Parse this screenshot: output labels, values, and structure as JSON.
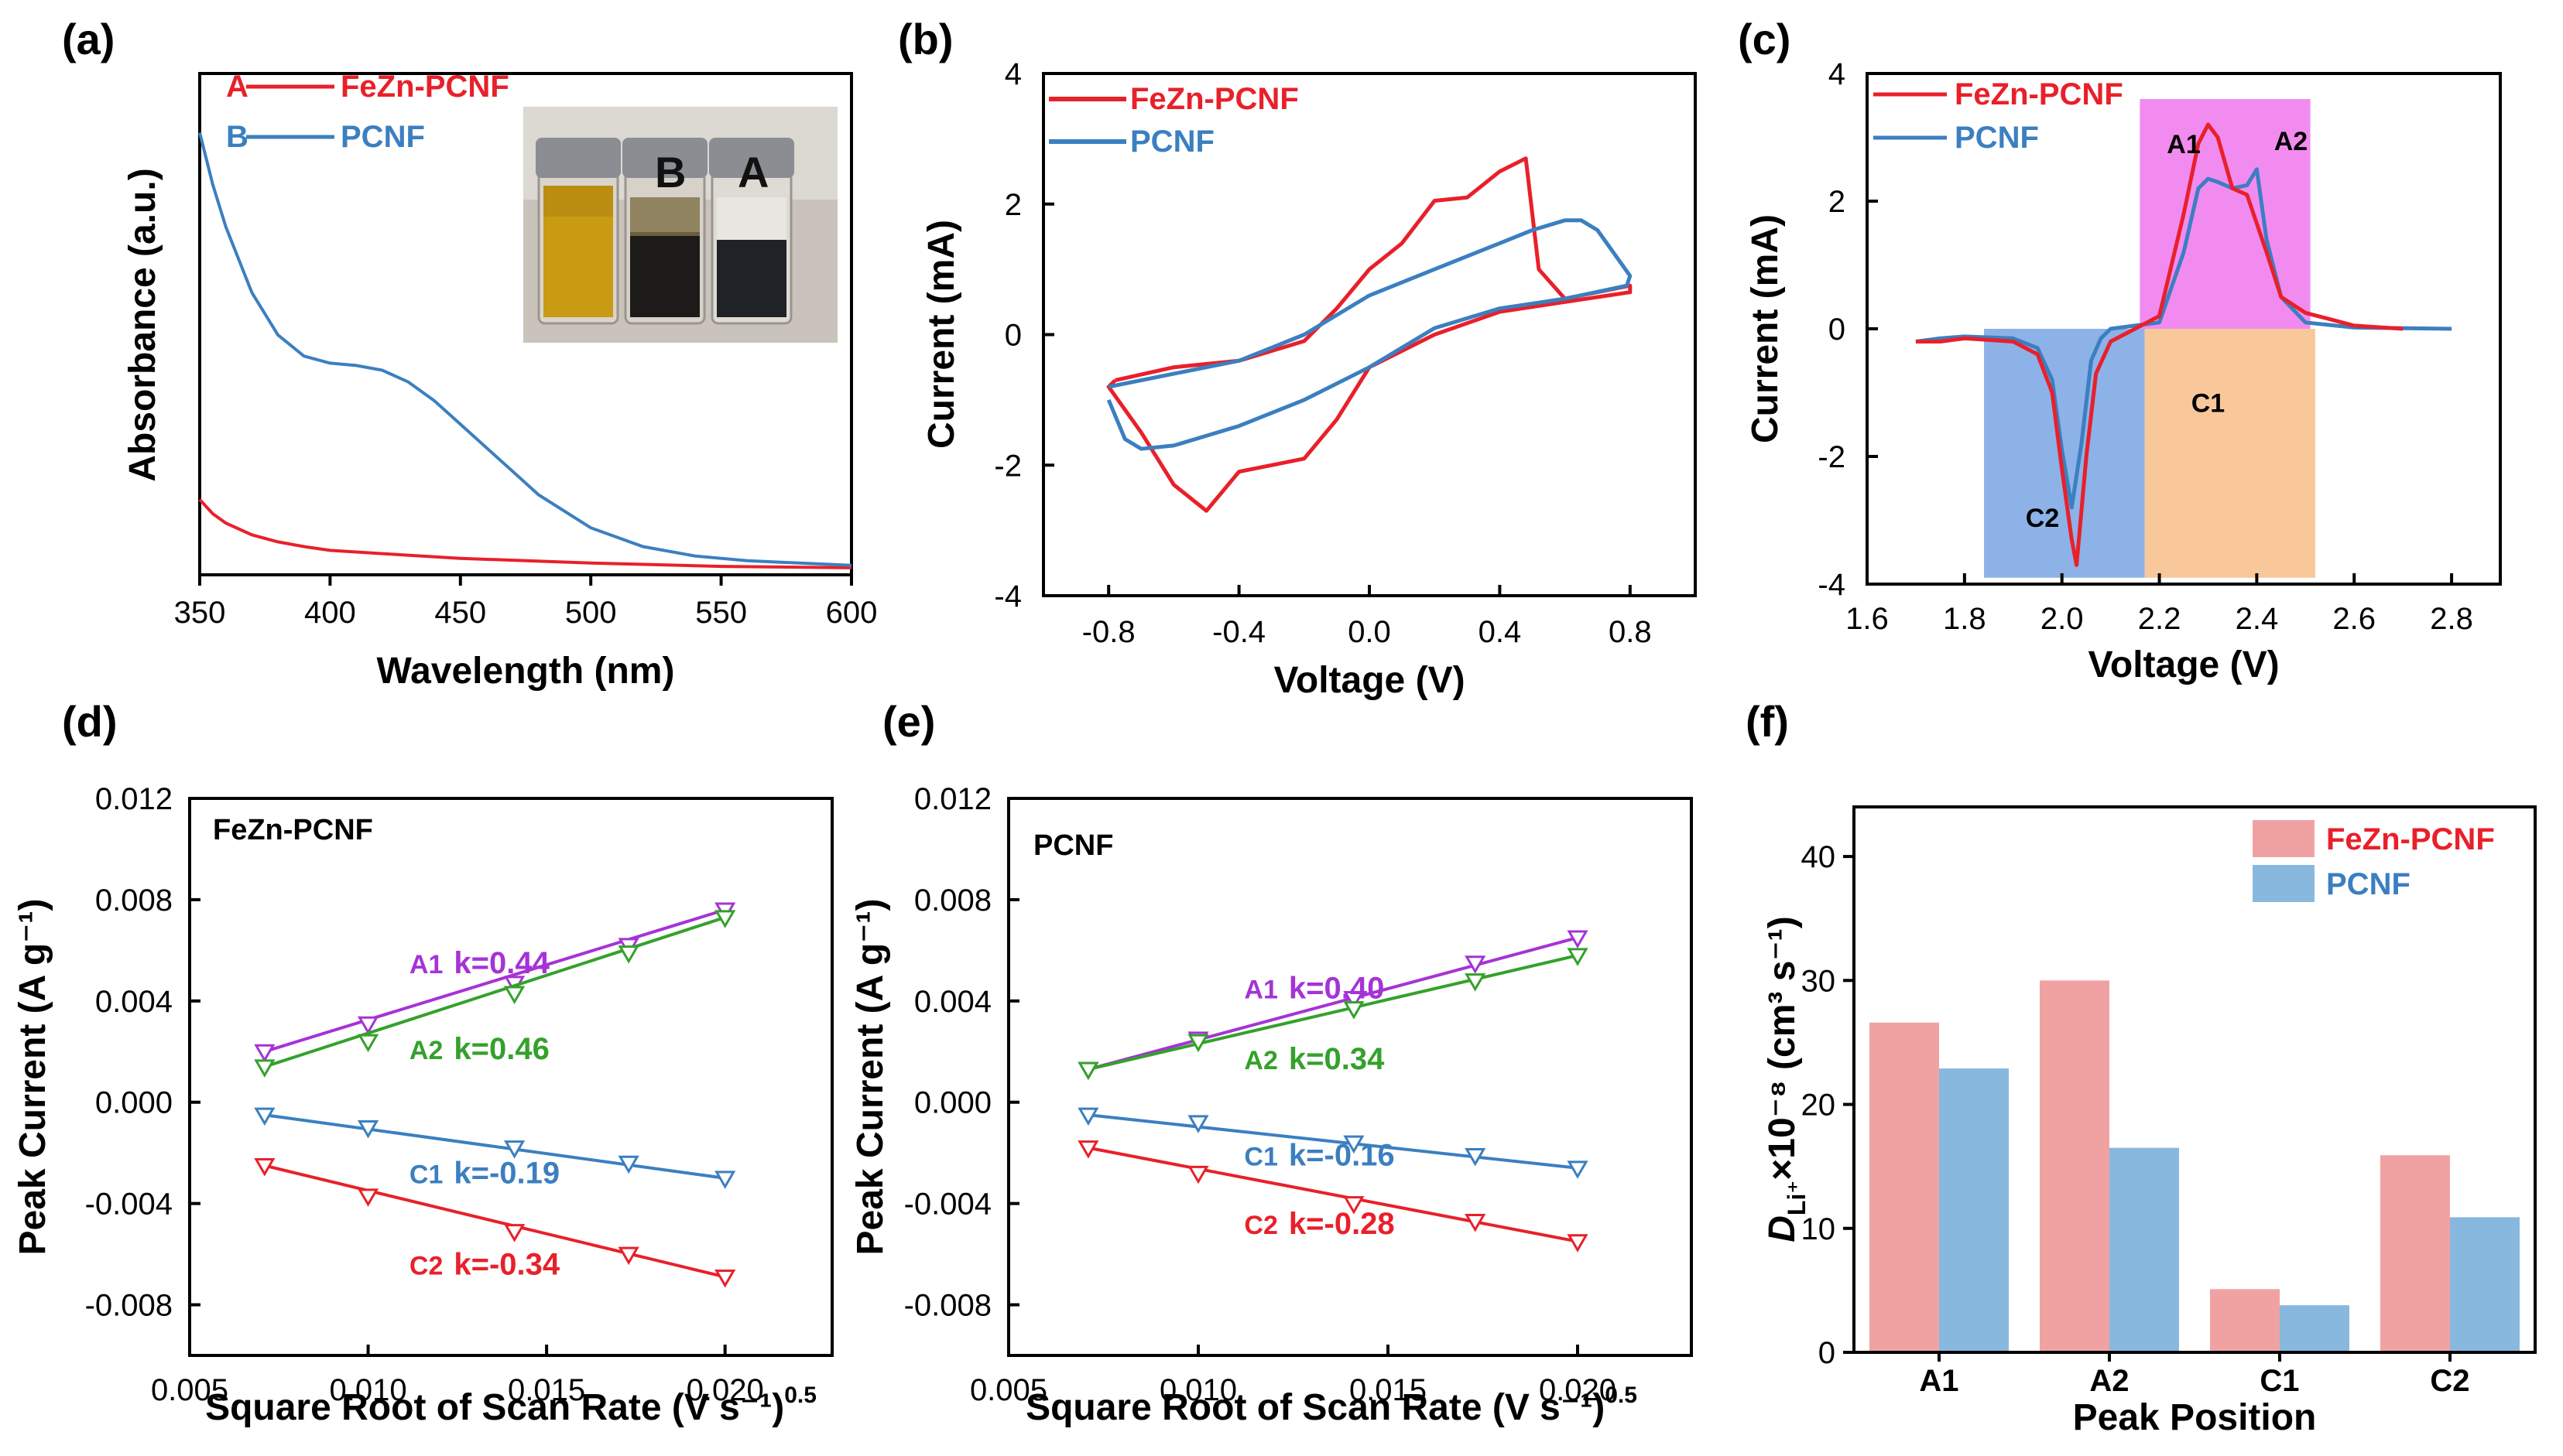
{
  "colors": {
    "red": "#e8202a",
    "blue": "#3b7fc0",
    "purple": "#a533d6",
    "green": "#34a12b",
    "barRed": "#f0a2a2",
    "barBlue": "#89b8de",
    "pink": "#f28bf0",
    "shadeBlue": "#8cb2e8",
    "shadeOrange": "#f8c89a"
  },
  "chart_data": [
    {
      "id": "a",
      "panel_label": "(a)",
      "type": "line",
      "xlabel": "Wavelength (nm)",
      "ylabel": "Absorbance (a.u.)",
      "xlim": [
        350,
        600
      ],
      "xticks": [
        350,
        400,
        450,
        500,
        550,
        600
      ],
      "ylim": [
        0,
        1
      ],
      "legend": [
        {
          "letter": "A",
          "name": "FeZn-PCNF",
          "color": "#e8202a"
        },
        {
          "letter": "B",
          "name": "PCNF",
          "color": "#3b7fc0"
        }
      ],
      "inset": {
        "description": "photo of vials",
        "vial_labels": [
          "B",
          "A"
        ]
      },
      "series": [
        {
          "name": "FeZn-PCNF",
          "color": "#e8202a",
          "x": [
            350,
            355,
            360,
            370,
            380,
            390,
            400,
            420,
            450,
            500,
            550,
            600
          ],
          "y": [
            0.16,
            0.13,
            0.11,
            0.085,
            0.07,
            0.06,
            0.052,
            0.045,
            0.035,
            0.025,
            0.018,
            0.015
          ]
        },
        {
          "name": "PCNF",
          "color": "#3b7fc0",
          "x": [
            350,
            355,
            360,
            370,
            380,
            390,
            400,
            410,
            420,
            430,
            440,
            450,
            460,
            470,
            480,
            500,
            520,
            540,
            560,
            580,
            600
          ],
          "y": [
            0.94,
            0.83,
            0.74,
            0.6,
            0.51,
            0.465,
            0.45,
            0.445,
            0.435,
            0.41,
            0.37,
            0.32,
            0.27,
            0.22,
            0.17,
            0.1,
            0.06,
            0.04,
            0.03,
            0.025,
            0.02
          ]
        }
      ]
    },
    {
      "id": "b",
      "panel_label": "(b)",
      "type": "line",
      "xlabel": "Voltage (V)",
      "ylabel": "Current (mA)",
      "xlim": [
        -1.0,
        1.0
      ],
      "ylim": [
        -4,
        4
      ],
      "xticks": [
        -0.8,
        -0.4,
        0.0,
        0.4,
        0.8
      ],
      "xticklabels": [
        "-0.8",
        "-0.4",
        "0.0",
        "0.4",
        "0.8"
      ],
      "yticks": [
        -4,
        -2,
        0,
        2,
        4
      ],
      "yticklabels": [
        "-4",
        "-2",
        "0",
        "2",
        "4"
      ],
      "legend": [
        {
          "name": "FeZn-PCNF",
          "color": "#e8202a"
        },
        {
          "name": "PCNF",
          "color": "#3b7fc0"
        }
      ],
      "series": [
        {
          "name": "FeZn-PCNF",
          "color": "#e8202a",
          "x": [
            -0.78,
            -0.6,
            -0.4,
            -0.2,
            -0.1,
            0.0,
            0.1,
            0.2,
            0.3,
            0.4,
            0.48,
            0.52,
            0.6,
            0.8,
            0.8,
            0.6,
            0.4,
            0.2,
            0.0,
            -0.1,
            -0.2,
            -0.3,
            -0.4,
            -0.5,
            -0.6,
            -0.7,
            -0.8,
            -0.78
          ],
          "y": [
            -0.7,
            -0.5,
            -0.4,
            -0.1,
            0.4,
            1.0,
            1.4,
            2.05,
            2.1,
            2.5,
            2.7,
            1.0,
            0.55,
            0.75,
            0.65,
            0.5,
            0.35,
            0.0,
            -0.5,
            -1.3,
            -1.9,
            -2.0,
            -2.1,
            -2.7,
            -2.3,
            -1.5,
            -0.8,
            -0.7
          ]
        },
        {
          "name": "PCNF",
          "color": "#3b7fc0",
          "x": [
            -0.8,
            -0.6,
            -0.4,
            -0.2,
            0.0,
            0.2,
            0.4,
            0.5,
            0.6,
            0.65,
            0.7,
            0.8,
            0.79,
            0.6,
            0.4,
            0.2,
            0.0,
            -0.2,
            -0.4,
            -0.6,
            -0.7,
            -0.75,
            -0.8
          ],
          "y": [
            -0.8,
            -0.6,
            -0.4,
            0.0,
            0.6,
            1.0,
            1.4,
            1.6,
            1.75,
            1.75,
            1.6,
            0.9,
            0.75,
            0.55,
            0.4,
            0.1,
            -0.5,
            -1.0,
            -1.4,
            -1.7,
            -1.75,
            -1.6,
            -1.0
          ]
        }
      ]
    },
    {
      "id": "c",
      "panel_label": "(c)",
      "type": "line",
      "xlabel": "Voltage (V)",
      "ylabel": "Current (mA)",
      "xlim": [
        1.6,
        2.9
      ],
      "ylim": [
        -4,
        4
      ],
      "xticks": [
        1.6,
        1.8,
        2.0,
        2.2,
        2.4,
        2.6,
        2.8
      ],
      "xticklabels": [
        "1.6",
        "1.8",
        "2.0",
        "2.2",
        "2.4",
        "2.6",
        "2.8"
      ],
      "yticks": [
        -4,
        -2,
        0,
        2,
        4
      ],
      "yticklabels": [
        "-4",
        "-2",
        "0",
        "2",
        "4"
      ],
      "legend": [
        {
          "name": "FeZn-PCNF",
          "color": "#e8202a"
        },
        {
          "name": "PCNF",
          "color": "#3b7fc0"
        }
      ],
      "shaded_regions": [
        {
          "x": [
            2.16,
            2.51
          ],
          "y": [
            0,
            3.6
          ],
          "color": "#f28bf0"
        },
        {
          "x": [
            1.84,
            2.17
          ],
          "y": [
            -3.9,
            0
          ],
          "color": "#8cb2e8"
        },
        {
          "x": [
            2.17,
            2.52
          ],
          "y": [
            -3.9,
            0
          ],
          "color": "#f8c89a"
        }
      ],
      "annotations": [
        {
          "text": "A1",
          "x": 2.25,
          "y": 2.75
        },
        {
          "text": "A2",
          "x": 2.47,
          "y": 2.8
        },
        {
          "text": "C1",
          "x": 2.3,
          "y": -1.3
        },
        {
          "text": "C2",
          "x": 1.96,
          "y": -3.1
        }
      ],
      "series": [
        {
          "name": "FeZn-PCNF",
          "color": "#e8202a",
          "x": [
            1.7,
            1.75,
            1.8,
            1.9,
            1.95,
            1.98,
            2.0,
            2.02,
            2.03,
            2.05,
            2.07,
            2.1,
            2.15,
            2.2,
            2.25,
            2.28,
            2.3,
            2.32,
            2.35,
            2.38,
            2.42,
            2.45,
            2.5,
            2.55,
            2.6,
            2.7
          ],
          "y": [
            -0.2,
            -0.2,
            -0.15,
            -0.2,
            -0.4,
            -1.0,
            -2.2,
            -3.3,
            -3.7,
            -2.0,
            -0.7,
            -0.2,
            0.0,
            0.2,
            1.8,
            2.9,
            3.2,
            3.0,
            2.2,
            2.1,
            1.2,
            0.5,
            0.25,
            0.15,
            0.05,
            0.0
          ]
        },
        {
          "name": "PCNF",
          "color": "#3b7fc0",
          "x": [
            1.7,
            1.75,
            1.8,
            1.9,
            1.95,
            1.98,
            2.0,
            2.02,
            2.04,
            2.06,
            2.08,
            2.1,
            2.15,
            2.2,
            2.25,
            2.28,
            2.3,
            2.32,
            2.35,
            2.38,
            2.4,
            2.42,
            2.45,
            2.5,
            2.6,
            2.8
          ],
          "y": [
            -0.2,
            -0.15,
            -0.12,
            -0.15,
            -0.3,
            -0.8,
            -1.9,
            -2.8,
            -1.8,
            -0.5,
            -0.15,
            0.0,
            0.05,
            0.1,
            1.2,
            2.2,
            2.35,
            2.3,
            2.2,
            2.25,
            2.5,
            1.4,
            0.5,
            0.1,
            0.02,
            0.0
          ]
        }
      ]
    },
    {
      "id": "d",
      "panel_label": "(d)",
      "type": "scatter",
      "sample": "FeZn-PCNF",
      "xlabel": "Square Root of Scan Rate (V s⁻¹)",
      "xlabel_sup": "0.5",
      "ylabel": "Peak Current (A g⁻¹)",
      "xlim": [
        0.005,
        0.023
      ],
      "ylim": [
        -0.01,
        0.012
      ],
      "xticks": [
        0.005,
        0.01,
        0.015,
        0.02
      ],
      "xticklabels": [
        "0.005",
        "0.010",
        "0.015",
        "0.020"
      ],
      "yticks": [
        -0.008,
        -0.004,
        0.0,
        0.004,
        0.008,
        0.012
      ],
      "yticklabels": [
        "-0.008",
        "-0.004",
        "0.000",
        "0.004",
        "0.008",
        "0.012"
      ],
      "x": [
        0.0071,
        0.01,
        0.0141,
        0.0173,
        0.02
      ],
      "series": [
        {
          "name": "A1",
          "k_label": "k=0.44",
          "color": "#a533d6",
          "y": [
            0.002,
            0.0031,
            0.0047,
            0.0062,
            0.0076
          ],
          "label_at": [
            0.0121,
            0.0051
          ]
        },
        {
          "name": "A2",
          "k_label": "k=0.46",
          "color": "#34a12b",
          "y": [
            0.0014,
            0.0024,
            0.0043,
            0.0059,
            0.0073
          ],
          "label_at": [
            0.0121,
            0.0017
          ]
        },
        {
          "name": "C1",
          "k_label": "k=-0.19",
          "color": "#3b7fc0",
          "y": [
            -0.0005,
            -0.001,
            -0.0018,
            -0.0024,
            -0.003
          ],
          "label_at": [
            0.0121,
            -0.0032
          ]
        },
        {
          "name": "C2",
          "k_label": "k=-0.34",
          "color": "#e8202a",
          "y": [
            -0.0025,
            -0.0037,
            -0.0051,
            -0.006,
            -0.0069
          ],
          "label_at": [
            0.0121,
            -0.0068
          ]
        }
      ]
    },
    {
      "id": "e",
      "panel_label": "(e)",
      "type": "scatter",
      "sample": "PCNF",
      "xlabel": "Square Root of Scan Rate (V s⁻¹)",
      "xlabel_sup": "0.5",
      "ylabel": "Peak Current (A g⁻¹)",
      "xlim": [
        0.005,
        0.023
      ],
      "ylim": [
        -0.01,
        0.012
      ],
      "xticks": [
        0.005,
        0.01,
        0.015,
        0.02
      ],
      "xticklabels": [
        "0.005",
        "0.010",
        "0.015",
        "0.020"
      ],
      "yticks": [
        -0.008,
        -0.004,
        0.0,
        0.004,
        0.008,
        0.012
      ],
      "yticklabels": [
        "-0.008",
        "-0.004",
        "0.000",
        "0.004",
        "0.008",
        "0.012"
      ],
      "x": [
        0.0071,
        0.01,
        0.0141,
        0.0173,
        0.02
      ],
      "series": [
        {
          "name": "A1",
          "k_label": "k=0.40",
          "color": "#a533d6",
          "y": [
            0.0013,
            0.0025,
            0.0041,
            0.0055,
            0.0065
          ],
          "label_at": [
            0.0121,
            0.0041
          ]
        },
        {
          "name": "A2",
          "k_label": "k=0.34",
          "color": "#34a12b",
          "y": [
            0.0013,
            0.0024,
            0.0037,
            0.0048,
            0.0058
          ],
          "label_at": [
            0.0121,
            0.0013
          ]
        },
        {
          "name": "C1",
          "k_label": "k=-0.16",
          "color": "#3b7fc0",
          "y": [
            -0.0005,
            -0.0008,
            -0.0016,
            -0.0021,
            -0.0026
          ],
          "label_at": [
            0.0121,
            -0.0025
          ]
        },
        {
          "name": "C2",
          "k_label": "k=-0.28",
          "color": "#e8202a",
          "y": [
            -0.0018,
            -0.0028,
            -0.004,
            -0.0047,
            -0.0055
          ],
          "label_at": [
            0.0121,
            -0.0052
          ]
        }
      ]
    },
    {
      "id": "f",
      "panel_label": "(f)",
      "type": "bar",
      "xlabel": "Peak Position",
      "ylabel": "D",
      "ylabel_sub": "Li⁺",
      "ylabel_rest": "×10⁻⁸ (cm³ s⁻¹)",
      "categories": [
        "A1",
        "A2",
        "C1",
        "C2"
      ],
      "ylim": [
        0,
        44
      ],
      "yticks": [
        0,
        10,
        20,
        30,
        40
      ],
      "yticklabels": [
        "0",
        "10",
        "20",
        "30",
        "40"
      ],
      "series": [
        {
          "name": "FeZn-PCNF",
          "color": "#f0a2a2",
          "text_color": "#e8202a",
          "values": [
            26.6,
            30.0,
            5.1,
            15.9
          ]
        },
        {
          "name": "PCNF",
          "color": "#89b8de",
          "text_color": "#3b7fc0",
          "values": [
            22.9,
            16.5,
            3.8,
            10.9
          ]
        }
      ]
    }
  ]
}
